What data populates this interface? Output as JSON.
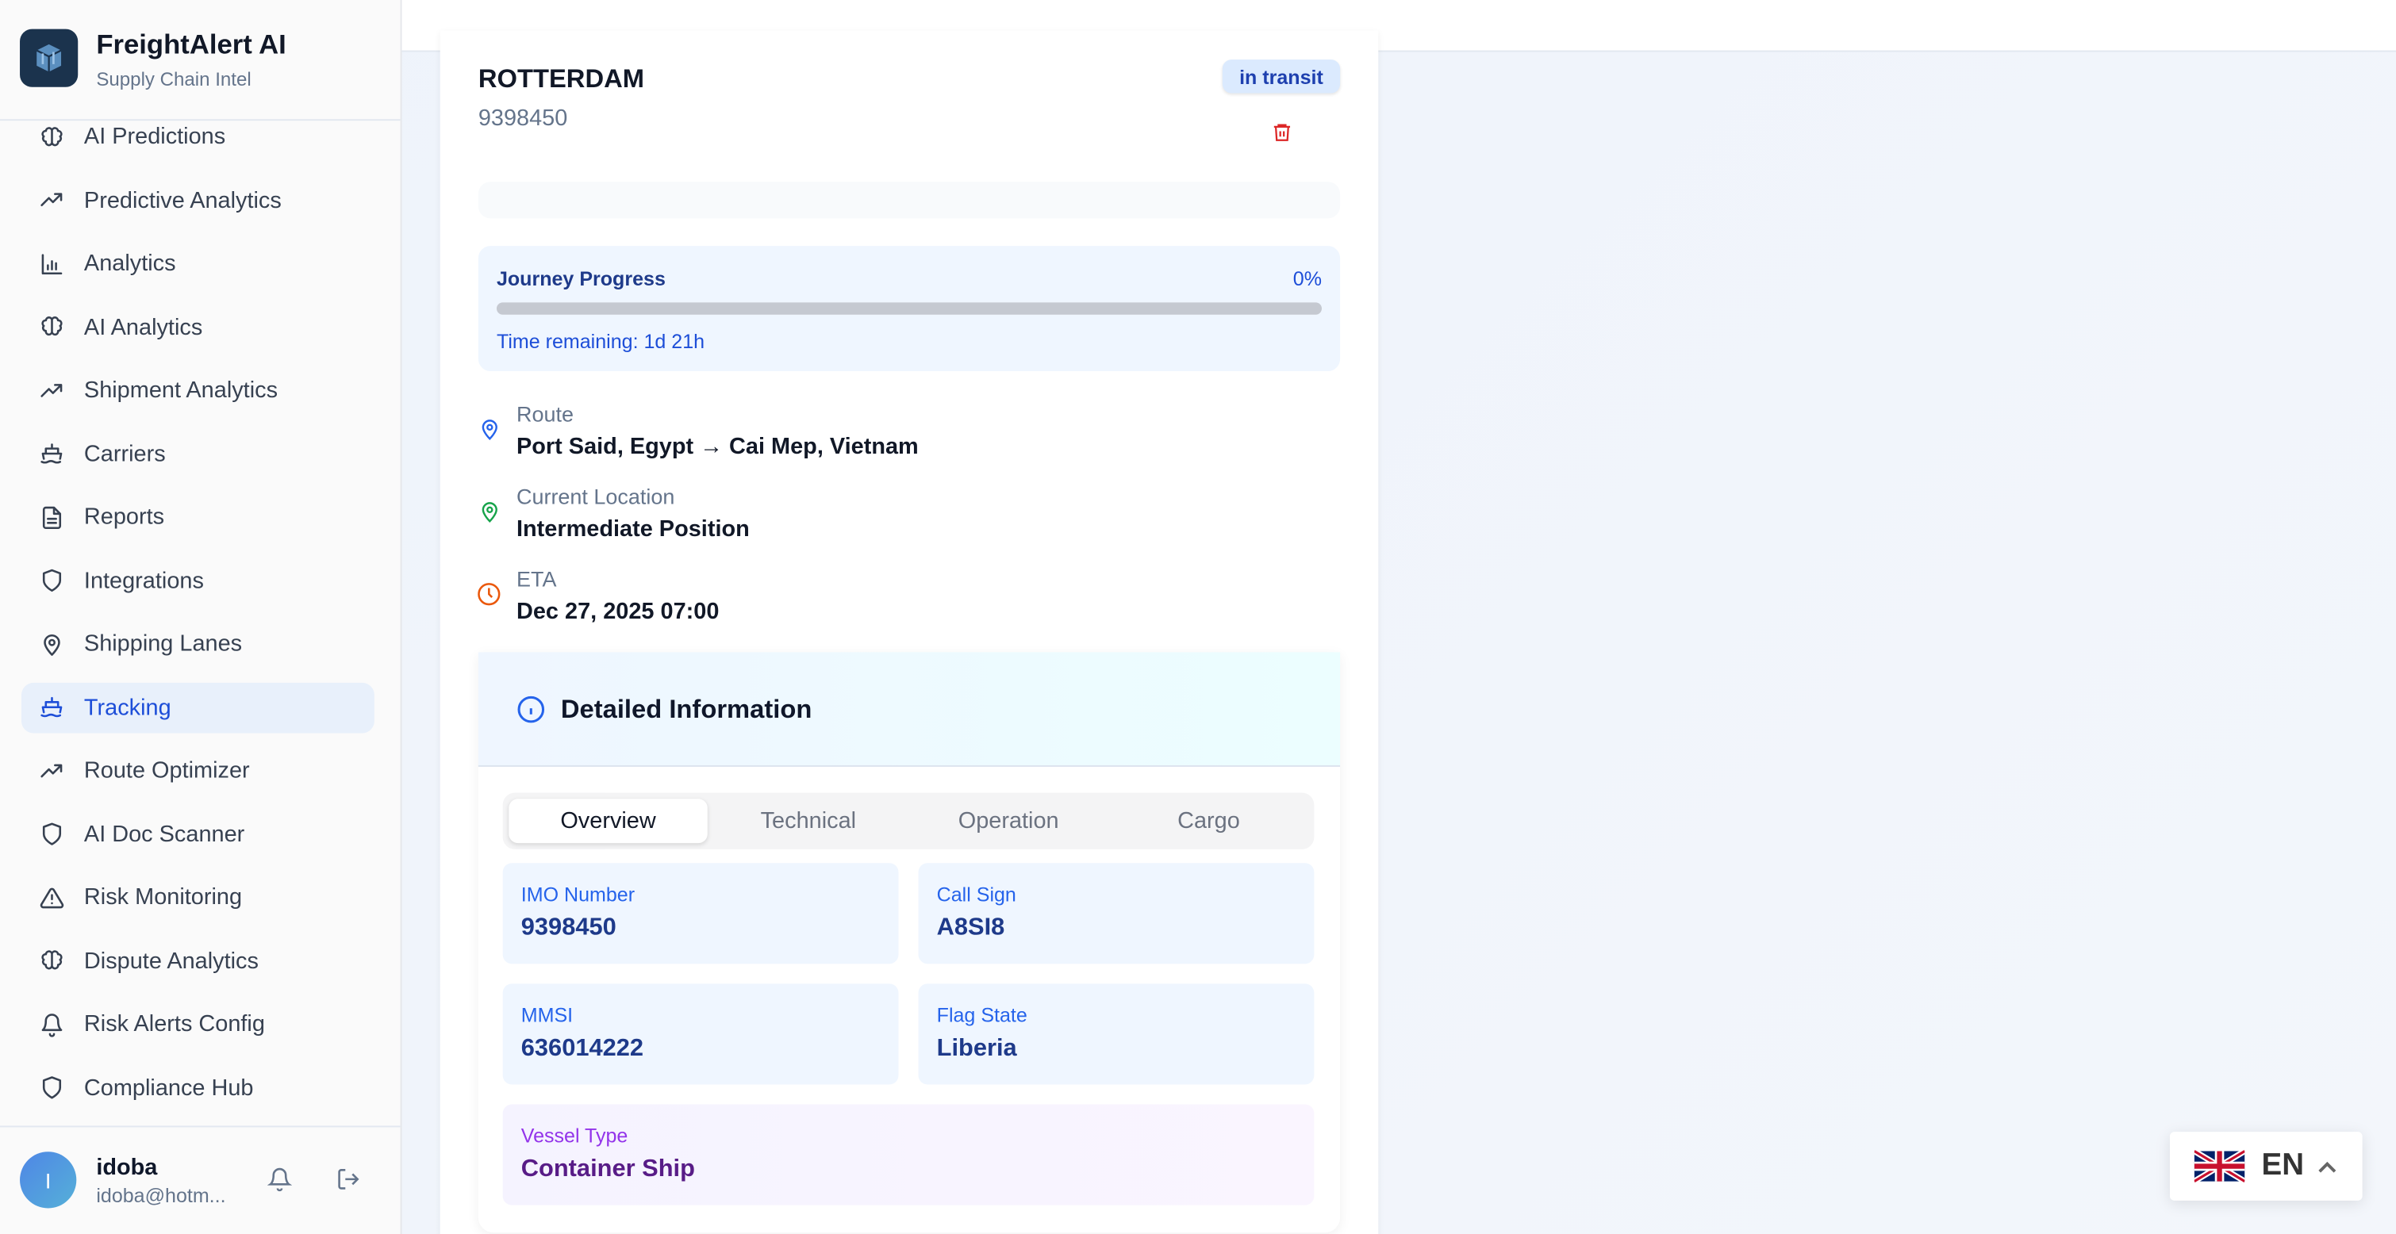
{
  "brand": {
    "name": "FreightAlert AI",
    "tagline": "Supply Chain Intel"
  },
  "sidebar": {
    "items": [
      {
        "label": "AI Predictions",
        "icon": "brain-icon"
      },
      {
        "label": "Predictive Analytics",
        "icon": "trending-up-icon"
      },
      {
        "label": "Analytics",
        "icon": "bar-chart-icon"
      },
      {
        "label": "AI Analytics",
        "icon": "brain-icon"
      },
      {
        "label": "Shipment Analytics",
        "icon": "trending-up-icon"
      },
      {
        "label": "Carriers",
        "icon": "ship-icon"
      },
      {
        "label": "Reports",
        "icon": "file-text-icon"
      },
      {
        "label": "Integrations",
        "icon": "shield-icon"
      },
      {
        "label": "Shipping Lanes",
        "icon": "map-pin-icon"
      },
      {
        "label": "Tracking",
        "icon": "ship-icon",
        "active": true
      },
      {
        "label": "Route Optimizer",
        "icon": "trending-up-icon"
      },
      {
        "label": "AI Doc Scanner",
        "icon": "shield-icon"
      },
      {
        "label": "Risk Monitoring",
        "icon": "alert-triangle-icon"
      },
      {
        "label": "Dispute Analytics",
        "icon": "brain-icon"
      },
      {
        "label": "Risk Alerts Config",
        "icon": "bell-icon"
      },
      {
        "label": "Compliance Hub",
        "icon": "shield-icon"
      }
    ]
  },
  "user": {
    "initial": "I",
    "name": "idoba",
    "email": "idoba@hotm..."
  },
  "vessel": {
    "name": "ROTTERDAM",
    "imo": "9398450",
    "status": "in transit",
    "progress": {
      "label": "Journey Progress",
      "percent_label": "0%",
      "percent": 0,
      "time_remaining": "Time remaining: 1d 21h"
    },
    "route": {
      "label": "Route",
      "value": "Port Said, Egypt → Cai Mep, Vietnam"
    },
    "location": {
      "label": "Current Location",
      "value": "Intermediate Position"
    },
    "eta": {
      "label": "ETA",
      "value": "Dec 27, 2025 07:00"
    }
  },
  "details": {
    "title": "Detailed Information",
    "tabs": [
      "Overview",
      "Technical",
      "Operation",
      "Cargo"
    ],
    "active_tab": "Overview",
    "fields": [
      {
        "label": "IMO Number",
        "value": "9398450"
      },
      {
        "label": "Call Sign",
        "value": "A8SI8"
      },
      {
        "label": "MMSI",
        "value": "636014222"
      },
      {
        "label": "Flag State",
        "value": "Liberia"
      },
      {
        "label": "Vessel Type",
        "value": "Container Ship"
      }
    ]
  },
  "language": {
    "code": "EN",
    "flag": "uk-flag-icon"
  },
  "colors": {
    "accent": "#1d4ed8",
    "badge_bg": "#dbeafe",
    "danger": "#dc2626"
  }
}
